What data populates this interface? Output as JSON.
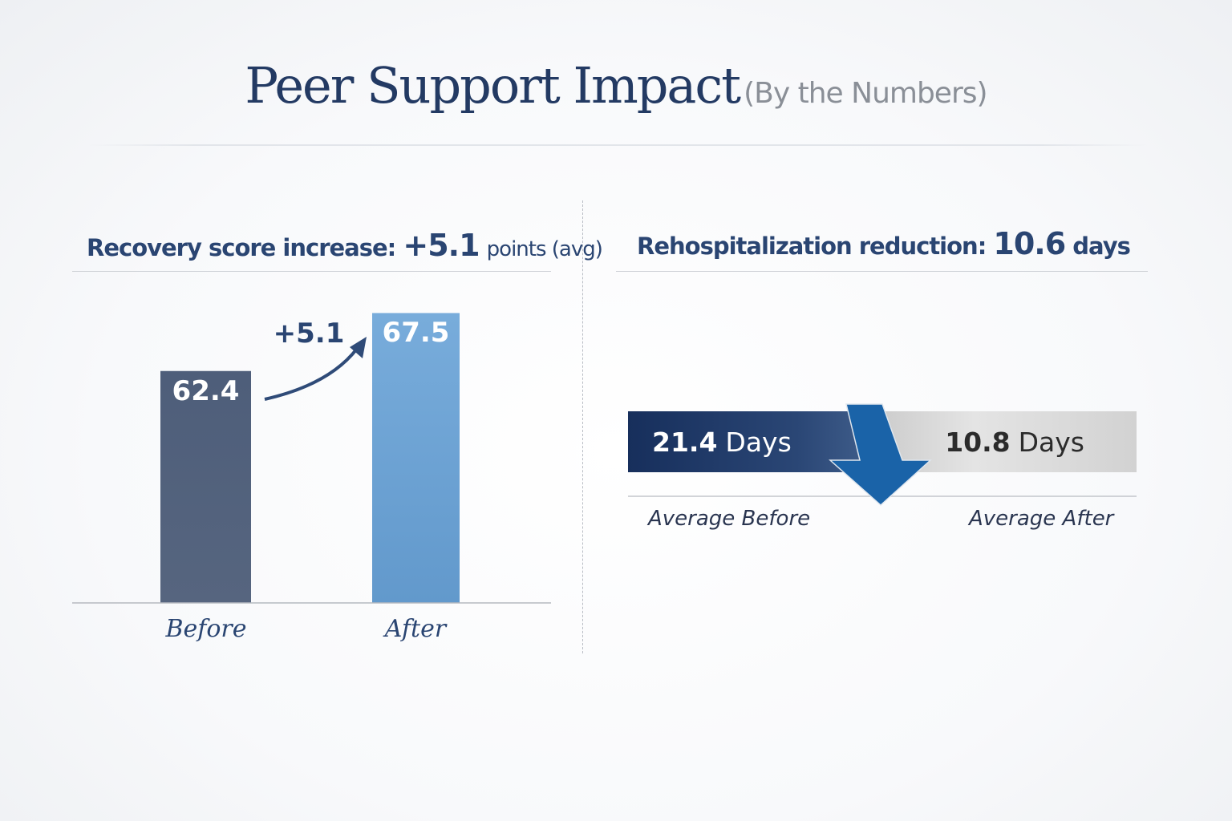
{
  "title": {
    "main": "Peer Support Impact",
    "sub": "(By the Numbers)"
  },
  "chart_data": [
    {
      "type": "bar",
      "title_prefix": "Recovery score increase:",
      "title_value": "+5.1",
      "title_suffix": "points (avg)",
      "categories": [
        "Before",
        "After"
      ],
      "values": [
        62.4,
        67.5
      ],
      "data_labels": [
        "62.4",
        "67.5"
      ],
      "annotation": "+5.1",
      "ylim": [
        42,
        70
      ],
      "grid": false,
      "colors": [
        "#4e5e7a",
        "#6aa3d5"
      ]
    },
    {
      "type": "bar",
      "orientation": "horizontal-comparison",
      "title_prefix": "Rehospitalization reduction:",
      "title_value": "10.6",
      "title_suffix": "days",
      "series": [
        {
          "label": "Average Before",
          "value": 21.4,
          "value_text": "21.4",
          "unit": "Days",
          "color": "#1f3a68"
        },
        {
          "label": "Average After",
          "value": 10.8,
          "value_text": "10.8",
          "unit": "Days",
          "color": "#d4d4d4"
        }
      ],
      "arrow_color": "#1a63a8"
    }
  ]
}
